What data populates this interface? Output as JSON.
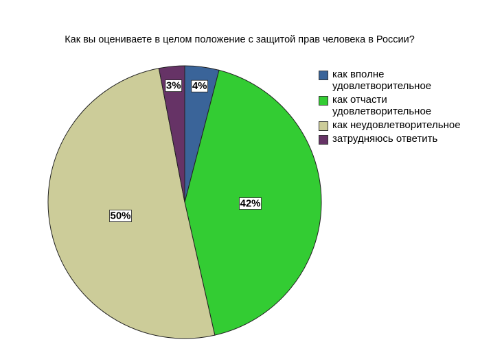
{
  "chart_data": {
    "type": "pie",
    "title": "Как вы оцениваете в целом положение с защитой прав человека в России?",
    "categories": [
      "как вполне удовлетворительное",
      "как отчасти удовлетворительное",
      "как неудовлетворительное",
      "затрудняюсь ответить"
    ],
    "values": [
      4,
      42,
      50,
      3
    ],
    "value_labels": [
      "4%",
      "42%",
      "50%",
      "3%"
    ],
    "colors": [
      "#3a6499",
      "#33cc33",
      "#cccc99",
      "#663366"
    ]
  }
}
